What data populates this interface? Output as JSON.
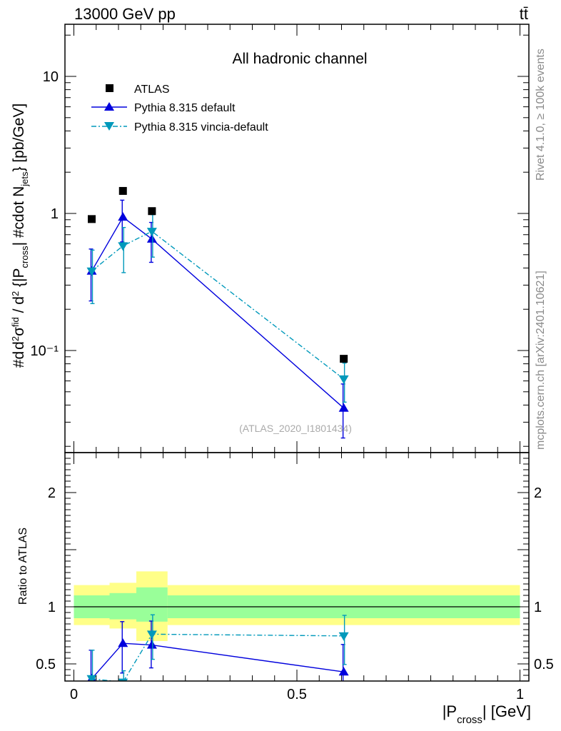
{
  "header": {
    "left_label": "13000 GeV pp",
    "right_label": "tt̄"
  },
  "side_labels": {
    "rivet": "Rivet 4.1.0, ≥ 100k events",
    "source": "mcplots.cern.ch [arXiv:2401.10621]"
  },
  "chart_data": {
    "type": "line",
    "title": "All hadronic channel",
    "analysis_label": "(ATLAS_2020_I1801434)",
    "xlabel": "|P_cross| [GeV]",
    "ylabel_upper": "#d d²σ^fid / d² {|P_cross| #cdot N_jets} [pb/GeV]",
    "ylabel_lower": "Ratio to ATLAS",
    "xlim": [
      -0.02,
      1.02
    ],
    "ylim_upper": [
      0.018,
      24
    ],
    "ylim_lower": [
      0.35,
      2.35
    ],
    "yscale_upper": "log",
    "x_ticks": [
      {
        "value": 0,
        "label": "0"
      },
      {
        "value": 0.5,
        "label": "0.5"
      },
      {
        "value": 1,
        "label": "1"
      }
    ],
    "y_ticks_upper": [
      {
        "value": 10,
        "label": "10"
      },
      {
        "value": 1,
        "label": "1"
      },
      {
        "value": 0.1,
        "label": "10⁻¹"
      }
    ],
    "y_ticks_lower": [
      {
        "value": 2,
        "label": "2"
      },
      {
        "value": 1,
        "label": "1"
      },
      {
        "value": 0.5,
        "label": "0.5"
      }
    ],
    "legend": {
      "position": "top-left",
      "entries": [
        {
          "label": "ATLAS",
          "marker": "square",
          "color": "#000000"
        },
        {
          "label": "Pythia 8.315 default",
          "marker": "triangle-up",
          "color": "#0000dd"
        },
        {
          "label": "Pythia 8.315 vincia-default",
          "marker": "triangle-down",
          "color": "#0099bb"
        }
      ]
    },
    "bins": [
      {
        "lo": 0.0,
        "hi": 0.08
      },
      {
        "lo": 0.08,
        "hi": 0.14
      },
      {
        "lo": 0.14,
        "hi": 0.21
      },
      {
        "lo": 0.21,
        "hi": 1.0
      }
    ],
    "data": {
      "name": "ATLAS",
      "x": [
        0.04,
        0.11,
        0.175,
        0.605
      ],
      "y": [
        0.91,
        1.46,
        1.04,
        0.087
      ]
    },
    "series": [
      {
        "name": "Pythia 8.315 default",
        "color": "#0000dd",
        "dash": "solid",
        "marker": "triangle-up",
        "x": [
          0.04,
          0.11,
          0.175,
          0.605
        ],
        "y": [
          0.38,
          0.94,
          0.65,
          0.038
        ],
        "err_lo": [
          0.15,
          0.32,
          0.21,
          0.015
        ],
        "err_hi": [
          0.17,
          0.31,
          0.21,
          0.019
        ],
        "ratio": [
          0.37,
          0.68,
          0.665,
          0.43
        ],
        "ratio_err_lo": [
          0.15,
          0.26,
          0.2,
          0.17
        ],
        "ratio_err_hi": [
          0.25,
          0.19,
          0.21,
          0.24
        ]
      },
      {
        "name": "Pythia 8.315 vincia-default",
        "color": "#0099bb",
        "dash": "dashdot",
        "marker": "triangle-down",
        "x": [
          0.04,
          0.11,
          0.175,
          0.605
        ],
        "y": [
          0.38,
          0.58,
          0.74,
          0.062
        ],
        "err_lo": [
          0.16,
          0.21,
          0.26,
          0.02
        ],
        "err_hi": [
          0.16,
          0.21,
          0.24,
          0.019
        ],
        "ratio": [
          0.37,
          0.34,
          0.76,
          0.745
        ],
        "ratio_err_lo": [
          0.15,
          0.1,
          0.22,
          0.25
        ],
        "ratio_err_hi": [
          0.25,
          0.1,
          0.17,
          0.18
        ]
      }
    ],
    "ratio_band": {
      "inner_color": "#99ff99",
      "outer_color": "#ffff88",
      "inner_lo": [
        0.9,
        0.89,
        0.87,
        0.9
      ],
      "inner_hi": [
        1.1,
        1.12,
        1.17,
        1.1
      ],
      "outer_lo": [
        0.84,
        0.81,
        0.7,
        0.84
      ],
      "outer_hi": [
        1.19,
        1.21,
        1.31,
        1.19
      ]
    }
  }
}
